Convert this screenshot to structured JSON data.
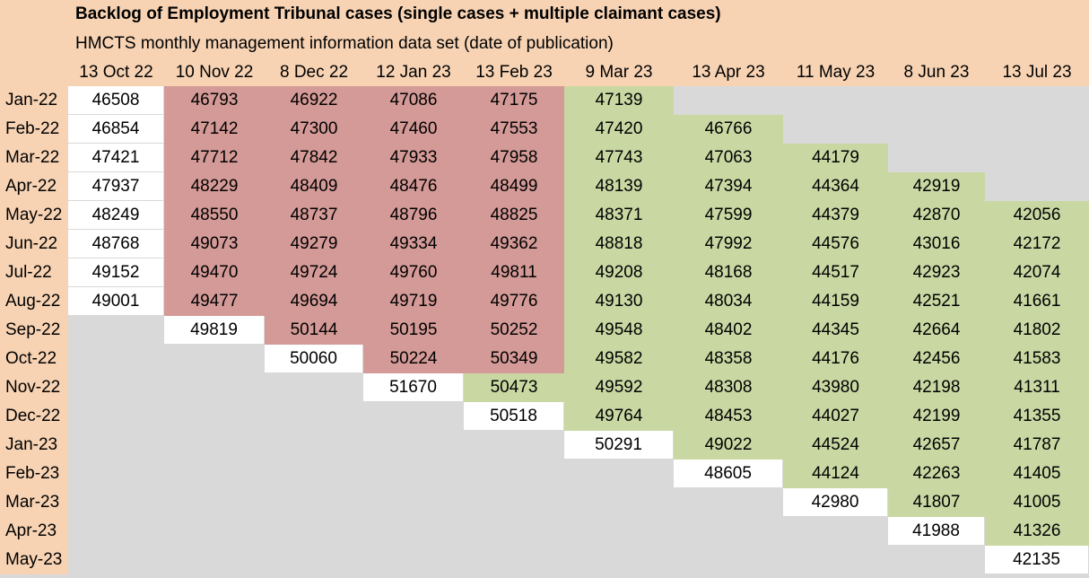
{
  "title": "Backlog of Employment Tribunal cases (single cases + multiple claimant cases)",
  "subtitle": "HMCTS monthly management information data set (date of publication)",
  "columns": [
    "13 Oct 22",
    "10 Nov 22",
    "8 Dec 22",
    "12 Jan 23",
    "13 Feb 23",
    "9 Mar 23",
    "13 Apr 23",
    "11 May 23",
    "8 Jun 23",
    "13 Jul 23"
  ],
  "colors": {
    "header_band": "#f7d3b4",
    "white": "#ffffff",
    "red": "#d49a97",
    "green": "#c9d8a3",
    "grey": "#d9d9d9"
  },
  "rows": [
    {
      "label": "Jan-22",
      "values": [
        "46508",
        "46793",
        "46922",
        "47086",
        "47175",
        "47139",
        "",
        "",
        "",
        ""
      ],
      "tones": [
        "w",
        "r",
        "r",
        "r",
        "r",
        "g",
        "n",
        "n",
        "n",
        "n"
      ]
    },
    {
      "label": "Feb-22",
      "values": [
        "46854",
        "47142",
        "47300",
        "47460",
        "47553",
        "47420",
        "46766",
        "",
        "",
        ""
      ],
      "tones": [
        "w",
        "r",
        "r",
        "r",
        "r",
        "g",
        "g",
        "n",
        "n",
        "n"
      ]
    },
    {
      "label": "Mar-22",
      "values": [
        "47421",
        "47712",
        "47842",
        "47933",
        "47958",
        "47743",
        "47063",
        "44179",
        "",
        ""
      ],
      "tones": [
        "w",
        "r",
        "r",
        "r",
        "r",
        "g",
        "g",
        "g",
        "n",
        "n"
      ]
    },
    {
      "label": "Apr-22",
      "values": [
        "47937",
        "48229",
        "48409",
        "48476",
        "48499",
        "48139",
        "47394",
        "44364",
        "42919",
        ""
      ],
      "tones": [
        "w",
        "r",
        "r",
        "r",
        "r",
        "g",
        "g",
        "g",
        "g",
        "n"
      ]
    },
    {
      "label": "May-22",
      "values": [
        "48249",
        "48550",
        "48737",
        "48796",
        "48825",
        "48371",
        "47599",
        "44379",
        "42870",
        "42056"
      ],
      "tones": [
        "w",
        "r",
        "r",
        "r",
        "r",
        "g",
        "g",
        "g",
        "g",
        "g"
      ]
    },
    {
      "label": "Jun-22",
      "values": [
        "48768",
        "49073",
        "49279",
        "49334",
        "49362",
        "48818",
        "47992",
        "44576",
        "43016",
        "42172"
      ],
      "tones": [
        "w",
        "r",
        "r",
        "r",
        "r",
        "g",
        "g",
        "g",
        "g",
        "g"
      ]
    },
    {
      "label": "Jul-22",
      "values": [
        "49152",
        "49470",
        "49724",
        "49760",
        "49811",
        "49208",
        "48168",
        "44517",
        "42923",
        "42074"
      ],
      "tones": [
        "w",
        "r",
        "r",
        "r",
        "r",
        "g",
        "g",
        "g",
        "g",
        "g"
      ]
    },
    {
      "label": "Aug-22",
      "values": [
        "49001",
        "49477",
        "49694",
        "49719",
        "49776",
        "49130",
        "48034",
        "44159",
        "42521",
        "41661"
      ],
      "tones": [
        "w",
        "r",
        "r",
        "r",
        "r",
        "g",
        "g",
        "g",
        "g",
        "g"
      ]
    },
    {
      "label": "Sep-22",
      "values": [
        "",
        "49819",
        "50144",
        "50195",
        "50252",
        "49548",
        "48402",
        "44345",
        "42664",
        "41802"
      ],
      "tones": [
        "n",
        "w",
        "r",
        "r",
        "r",
        "g",
        "g",
        "g",
        "g",
        "g"
      ]
    },
    {
      "label": "Oct-22",
      "values": [
        "",
        "",
        "50060",
        "50224",
        "50349",
        "49582",
        "48358",
        "44176",
        "42456",
        "41583"
      ],
      "tones": [
        "n",
        "n",
        "w",
        "r",
        "r",
        "g",
        "g",
        "g",
        "g",
        "g"
      ]
    },
    {
      "label": "Nov-22",
      "values": [
        "",
        "",
        "",
        "51670",
        "50473",
        "49592",
        "48308",
        "43980",
        "42198",
        "41311"
      ],
      "tones": [
        "n",
        "n",
        "n",
        "w",
        "g",
        "g",
        "g",
        "g",
        "g",
        "g"
      ]
    },
    {
      "label": "Dec-22",
      "values": [
        "",
        "",
        "",
        "",
        "50518",
        "49764",
        "48453",
        "44027",
        "42199",
        "41355"
      ],
      "tones": [
        "n",
        "n",
        "n",
        "n",
        "w",
        "g",
        "g",
        "g",
        "g",
        "g"
      ]
    },
    {
      "label": "Jan-23",
      "values": [
        "",
        "",
        "",
        "",
        "",
        "50291",
        "49022",
        "44524",
        "42657",
        "41787"
      ],
      "tones": [
        "n",
        "n",
        "n",
        "n",
        "n",
        "w",
        "g",
        "g",
        "g",
        "g"
      ]
    },
    {
      "label": "Feb-23",
      "values": [
        "",
        "",
        "",
        "",
        "",
        "",
        "48605",
        "44124",
        "42263",
        "41405"
      ],
      "tones": [
        "n",
        "n",
        "n",
        "n",
        "n",
        "n",
        "w",
        "g",
        "g",
        "g"
      ]
    },
    {
      "label": "Mar-23",
      "values": [
        "",
        "",
        "",
        "",
        "",
        "",
        "",
        "42980",
        "41807",
        "41005"
      ],
      "tones": [
        "n",
        "n",
        "n",
        "n",
        "n",
        "n",
        "n",
        "w",
        "g",
        "g"
      ]
    },
    {
      "label": "Apr-23",
      "values": [
        "",
        "",
        "",
        "",
        "",
        "",
        "",
        "",
        "41988",
        "41326"
      ],
      "tones": [
        "n",
        "n",
        "n",
        "n",
        "n",
        "n",
        "n",
        "n",
        "w",
        "g"
      ]
    },
    {
      "label": "May-23",
      "values": [
        "",
        "",
        "",
        "",
        "",
        "",
        "",
        "",
        "",
        "42135"
      ],
      "tones": [
        "n",
        "n",
        "n",
        "n",
        "n",
        "n",
        "n",
        "n",
        "n",
        "w"
      ]
    }
  ]
}
